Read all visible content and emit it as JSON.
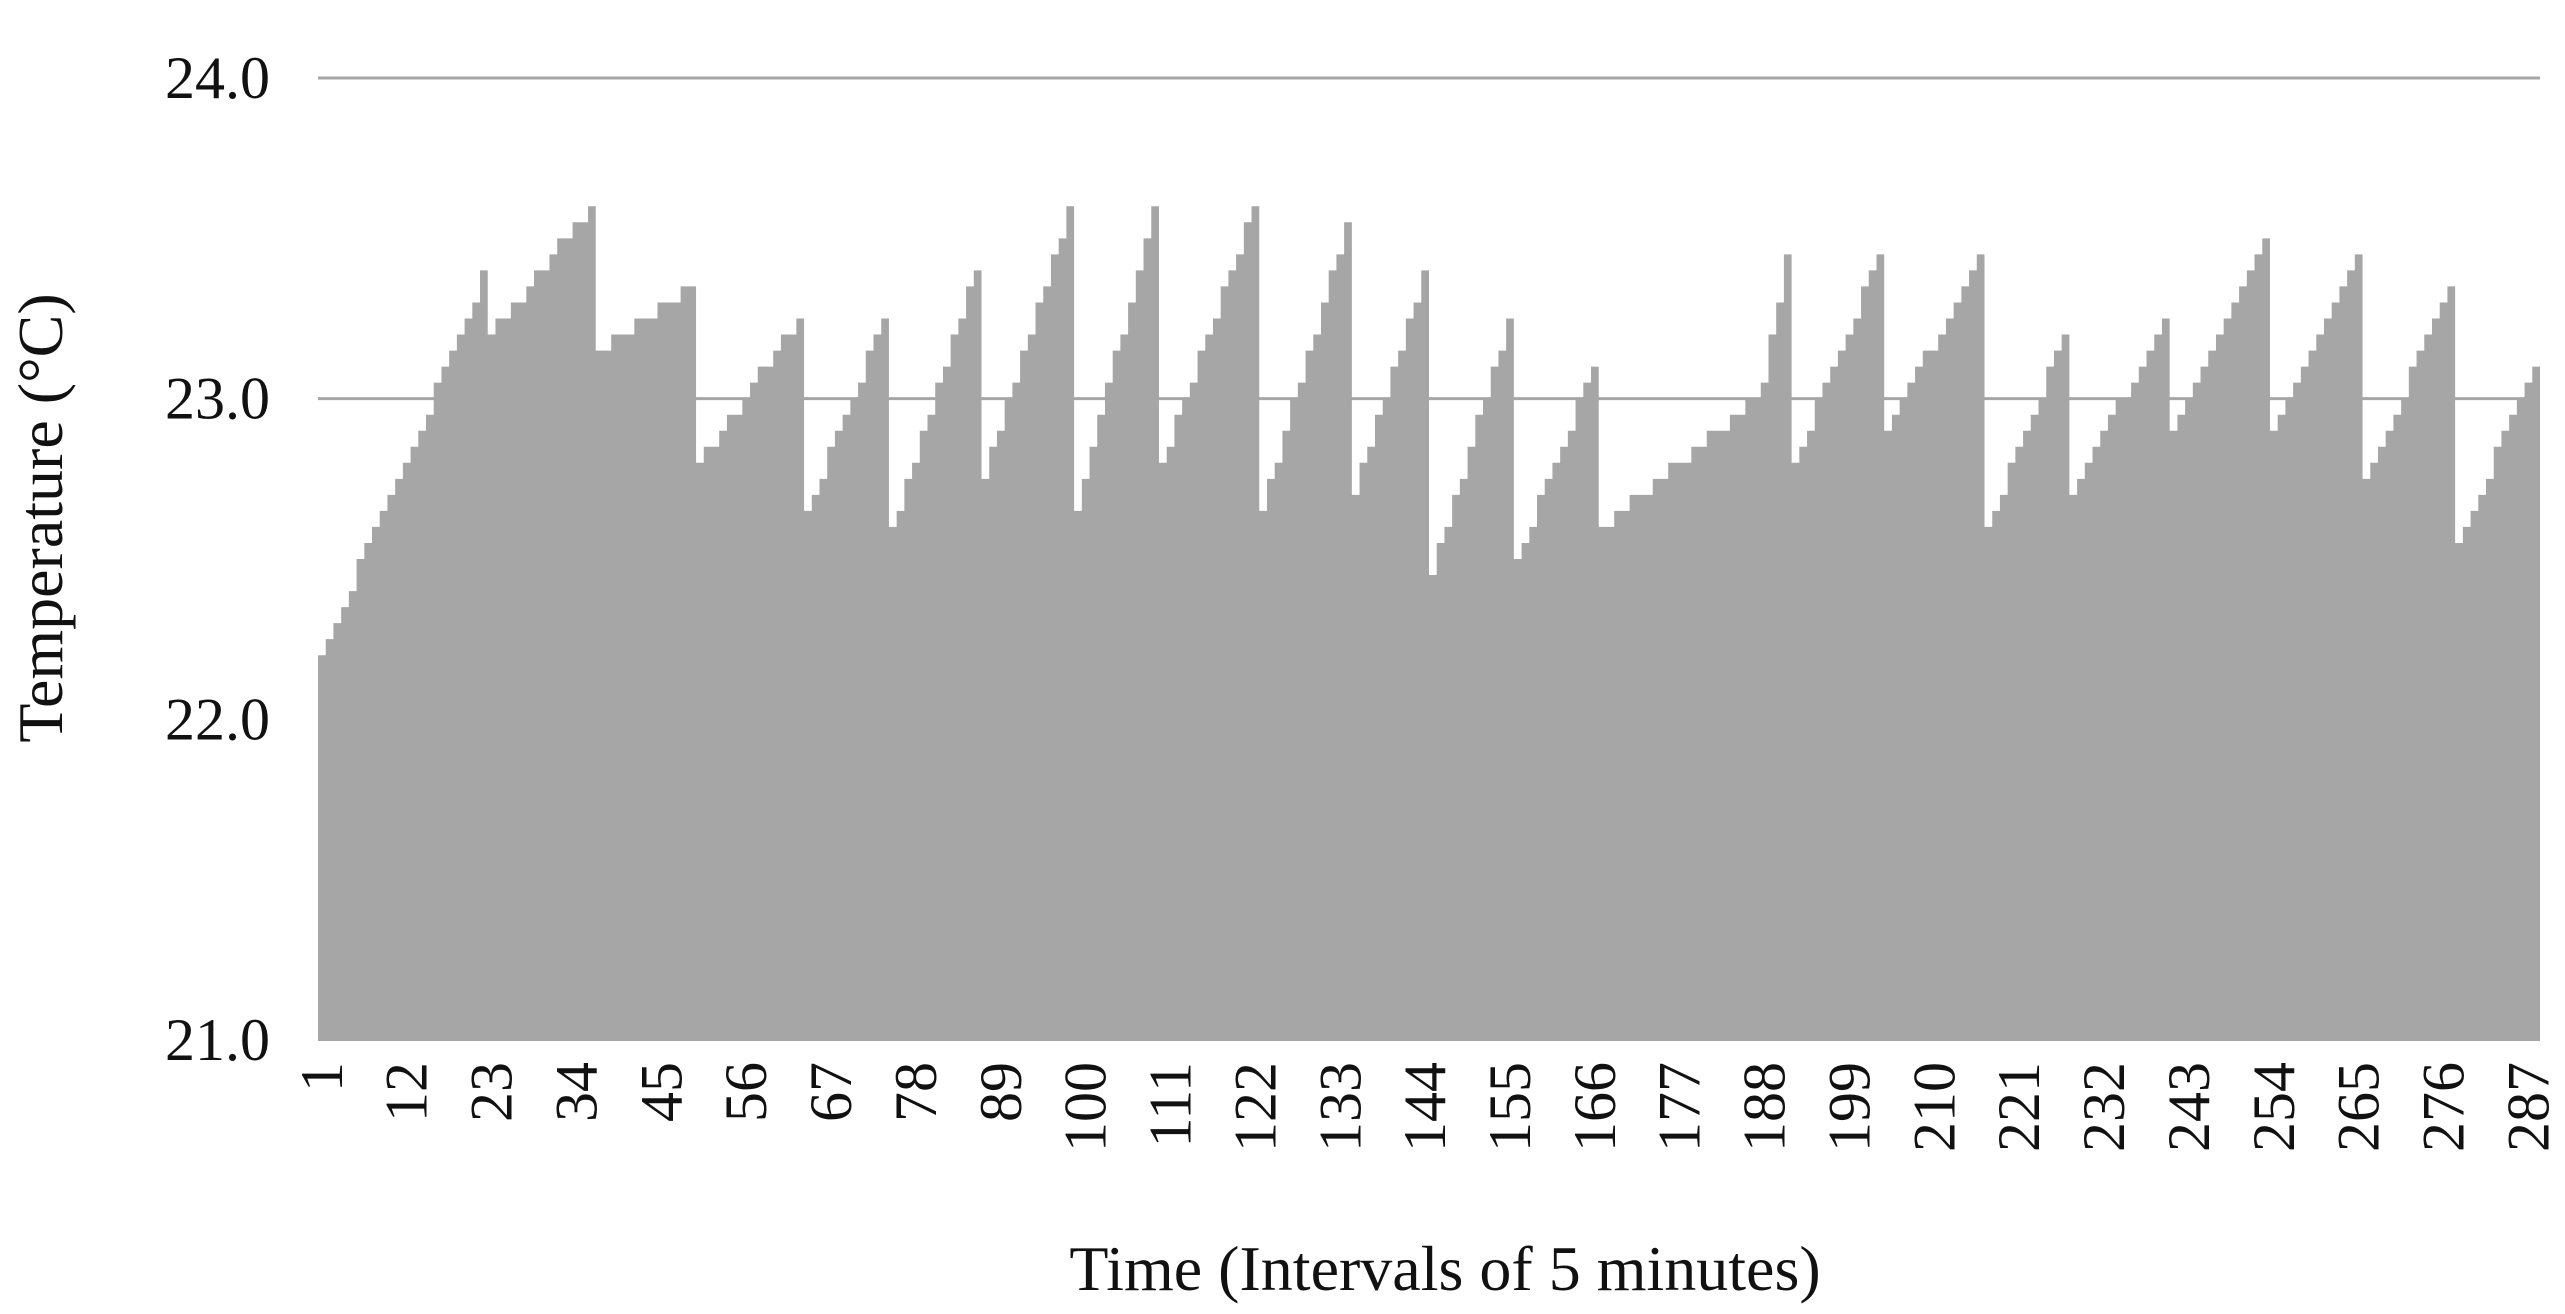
{
  "chart_data": {
    "type": "area",
    "title": "",
    "xlabel": "Time (Intervals of 5 minutes)",
    "ylabel": "Temperature (°C)",
    "ylim": [
      21.0,
      24.0
    ],
    "yticks": [
      "21.0",
      "22.0",
      "23.0",
      "24.0"
    ],
    "xlim": [
      1,
      288
    ],
    "xticks": [
      "1",
      "12",
      "23",
      "34",
      "45",
      "56",
      "67",
      "78",
      "89",
      "100",
      "111",
      "122",
      "133",
      "144",
      "155",
      "166",
      "177",
      "188",
      "199",
      "210",
      "221",
      "232",
      "243",
      "254",
      "265",
      "276",
      "287"
    ],
    "grid": true,
    "legend": "none",
    "fill_color": "#a6a6a6",
    "grid_color": "#a6a6a6",
    "series": [
      {
        "anchors": [
          [
            1,
            22.2
          ],
          [
            21,
            23.3
          ],
          [
            22,
            23.4
          ],
          [
            23,
            23.2
          ],
          [
            36,
            23.6
          ],
          [
            37,
            23.15
          ],
          [
            49,
            23.35
          ],
          [
            50,
            22.8
          ],
          [
            63,
            23.25
          ],
          [
            64,
            22.65
          ],
          [
            74,
            23.25
          ],
          [
            75,
            22.6
          ],
          [
            86,
            23.4
          ],
          [
            87,
            22.75
          ],
          [
            98,
            23.6
          ],
          [
            99,
            22.65
          ],
          [
            109,
            23.6
          ],
          [
            110,
            22.8
          ],
          [
            122,
            23.6
          ],
          [
            123,
            22.65
          ],
          [
            134,
            23.55
          ],
          [
            135,
            22.7
          ],
          [
            144,
            23.4
          ],
          [
            145,
            22.45
          ],
          [
            155,
            23.25
          ],
          [
            156,
            22.5
          ],
          [
            166,
            23.1
          ],
          [
            167,
            22.6
          ],
          [
            187,
            23.0
          ],
          [
            188,
            23.05
          ],
          [
            191,
            23.45
          ],
          [
            192,
            22.8
          ],
          [
            203,
            23.45
          ],
          [
            204,
            22.9
          ],
          [
            216,
            23.45
          ],
          [
            217,
            22.6
          ],
          [
            227,
            23.2
          ],
          [
            228,
            22.7
          ],
          [
            240,
            23.25
          ],
          [
            241,
            22.9
          ],
          [
            253,
            23.5
          ],
          [
            254,
            22.9
          ],
          [
            265,
            23.45
          ],
          [
            266,
            22.75
          ],
          [
            277,
            23.35
          ],
          [
            278,
            22.55
          ],
          [
            288,
            23.1
          ]
        ]
      }
    ]
  }
}
